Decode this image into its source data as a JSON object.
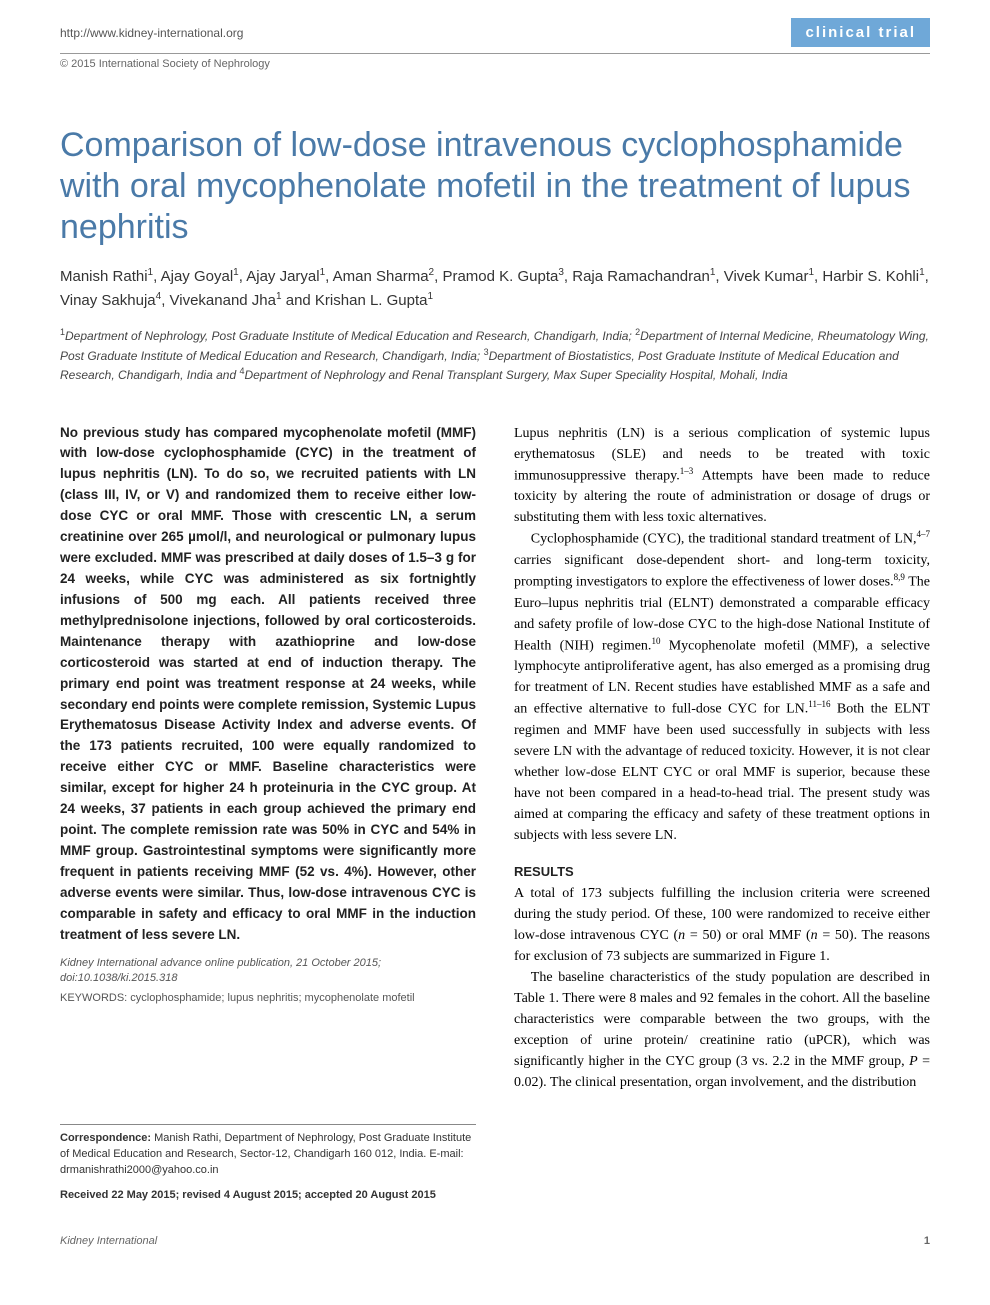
{
  "header": {
    "url": "http://www.kidney-international.org",
    "badge": "clinical trial",
    "copyright": "© 2015 International Society of Nephrology"
  },
  "title": "Comparison of low-dose intravenous cyclophosphamide with oral mycophenolate mofetil in the treatment of lupus nephritis",
  "authors_html": "Manish Rathi<sup>1</sup>, Ajay Goyal<sup>1</sup>, Ajay Jaryal<sup>1</sup>, Aman Sharma<sup>2</sup>, Pramod K. Gupta<sup>3</sup>, Raja Ramachandran<sup>1</sup>, Vivek Kumar<sup>1</sup>, Harbir S. Kohli<sup>1</sup>, Vinay Sakhuja<sup>4</sup>, Vivekanand Jha<sup>1</sup> and Krishan L. Gupta<sup>1</sup>",
  "affiliations_html": "<sup>1</sup>Department of Nephrology, Post Graduate Institute of Medical Education and Research, Chandigarh, India; <sup>2</sup>Department of Internal Medicine, Rheumatology Wing, Post Graduate Institute of Medical Education and Research, Chandigarh, India; <sup>3</sup>Department of Biostatistics, Post Graduate Institute of Medical Education and Research, Chandigarh, India and <sup>4</sup>Department of Nephrology and Renal Transplant Surgery, Max Super Speciality Hospital, Mohali, India",
  "abstract": "No previous study has compared mycophenolate mofetil (MMF) with low-dose cyclophosphamide (CYC) in the treatment of lupus nephritis (LN). To do so, we recruited patients with LN (class III, IV, or V) and randomized them to receive either low-dose CYC or oral MMF. Those with crescentic LN, a serum creatinine over 265 µmol/l, and neurological or pulmonary lupus were excluded. MMF was prescribed at daily doses of 1.5–3 g for 24 weeks, while CYC was administered as six fortnightly infusions of 500 mg each. All patients received three methylprednisolone injections, followed by oral corticosteroids. Maintenance therapy with azathioprine and low-dose corticosteroid was started at end of induction therapy. The primary end point was treatment response at 24 weeks, while secondary end points were complete remission, Systemic Lupus Erythematosus Disease Activity Index and adverse events. Of the 173 patients recruited, 100 were equally randomized to receive either CYC or MMF. Baseline characteristics were similar, except for higher 24 h proteinuria in the CYC group. At 24 weeks, 37 patients in each group achieved the primary end point. The complete remission rate was 50% in CYC and 54% in MMF group. Gastrointestinal symptoms were significantly more frequent in patients receiving MMF (52 vs. 4%). However, other adverse events were similar. Thus, low-dose intravenous CYC is comparable in safety and efficacy to oral MMF in the induction treatment of less severe LN.",
  "pub_info": "Kidney International advance online publication, 21 October 2015; doi:10.1038/ki.2015.318",
  "keywords": "KEYWORDS: cyclophosphamide; lupus nephritis; mycophenolate mofetil",
  "correspondence": {
    "label": "Correspondence:",
    "text": " Manish Rathi, Department of Nephrology, Post Graduate Institute of Medical Education and Research, Sector-12, Chandigarh 160 012, India. E-mail: drmanishrathi2000@yahoo.co.in"
  },
  "received": "Received 22 May 2015; revised 4 August 2015; accepted 20 August 2015",
  "body": {
    "p1_html": "Lupus nephritis (LN) is a serious complication of systemic lupus erythematosus (SLE) and needs to be treated with toxic immunosuppressive therapy.<sup>1–3</sup> Attempts have been made to reduce toxicity by altering the route of administration or dosage of drugs or substituting them with less toxic alternatives.",
    "p2_html": "Cyclophosphamide (CYC), the traditional standard treatment of LN,<sup>4–7</sup> carries significant dose-dependent short- and long-term toxicity, prompting investigators to explore the effectiveness of lower doses.<sup>8,9</sup> The Euro–lupus nephritis trial (ELNT) demonstrated a comparable efficacy and safety profile of low-dose CYC to the high-dose National Institute of Health (NIH) regimen.<sup>10</sup> Mycophenolate mofetil (MMF), a selective lymphocyte antiproliferative agent, has also emerged as a promising drug for treatment of LN. Recent studies have established MMF as a safe and an effective alternative to full-dose CYC for LN.<sup>11–16</sup> Both the ELNT regimen and MMF have been used successfully in subjects with less severe LN with the advantage of reduced toxicity. However, it is not clear whether low-dose ELNT CYC or oral MMF is superior, because these have not been compared in a head-to-head trial. The present study was aimed at comparing the efficacy and safety of these treatment options in subjects with less severe LN.",
    "results_heading": "RESULTS",
    "p3_html": "A total of 173 subjects fulfilling the inclusion criteria were screened during the study period. Of these, 100 were randomized to receive either low-dose intravenous CYC (<i>n</i> = 50) or oral MMF (<i>n</i> = 50). The reasons for exclusion of 73 subjects are summarized in Figure 1.",
    "p4_html": "The baseline characteristics of the study population are described in Table 1. There were 8 males and 92 females in the cohort. All the baseline characteristics were comparable between the two groups, with the exception of urine protein/ creatinine ratio (uPCR), which was significantly higher in the CYC group (3 vs. 2.2 in the MMF group, <i>P</i> = 0.02). The clinical presentation, organ involvement, and the distribution"
  },
  "footer": {
    "journal": "Kidney International",
    "page_num": "1"
  },
  "colors": {
    "badge_bg": "#6fa8d8",
    "title_color": "#4a7aa8",
    "rule_color": "#999999"
  }
}
